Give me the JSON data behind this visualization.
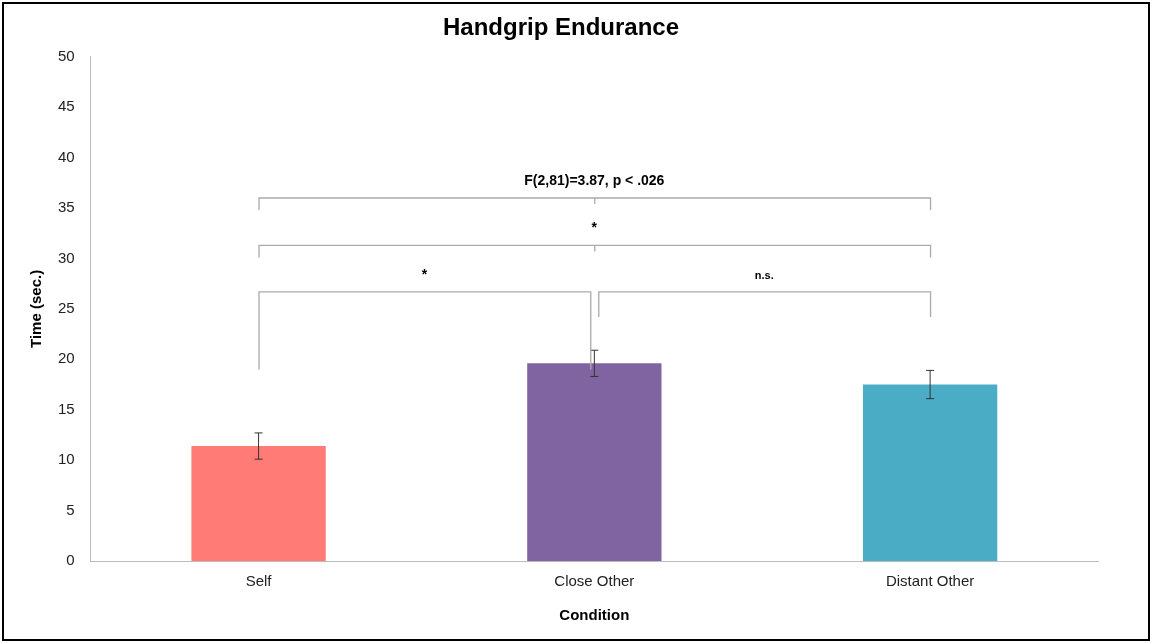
{
  "chart_data": {
    "type": "bar",
    "title": "Handgrip Endurance",
    "xlabel": "Condition",
    "ylabel": "Time (sec.)",
    "categories": [
      "Self",
      "Close Other",
      "Distant Other"
    ],
    "values": [
      11.4,
      19.6,
      17.5
    ],
    "colors": [
      "#ff7b75",
      "#8064a2",
      "#4bacc6"
    ],
    "errors": [
      1.3,
      1.3,
      1.4
    ],
    "ylim": [
      0,
      50
    ],
    "yticks": [
      0,
      5,
      10,
      15,
      20,
      25,
      30,
      35,
      40,
      45,
      50
    ],
    "grid": false,
    "legend": false,
    "annotations": [
      "F(2,81)=3.87, p < .026",
      "*",
      "*",
      "n.s."
    ]
  }
}
